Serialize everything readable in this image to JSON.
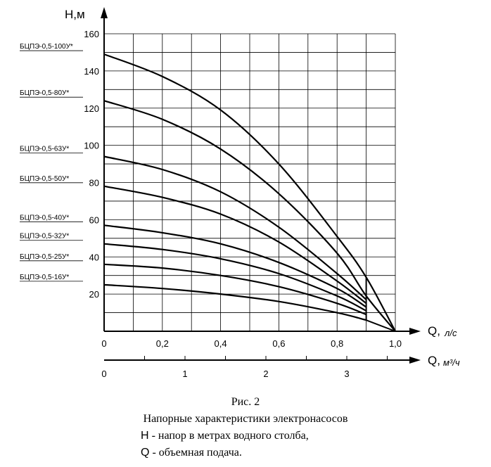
{
  "chart_data": {
    "type": "line",
    "y_axis": {
      "title": "H,м",
      "range": [
        0,
        160
      ],
      "ticks": [
        "20",
        "40",
        "60",
        "80",
        "100",
        "120",
        "140",
        "160"
      ]
    },
    "x_axis": {
      "title": "Q,",
      "unit": "л/с",
      "range": [
        0,
        1.0
      ],
      "ticks": [
        "0",
        "0,2",
        "0,4",
        "0,6",
        "0,8",
        "1,0"
      ]
    },
    "x2_axis": {
      "title": "Q,",
      "unit": "м³/ч",
      "range": [
        0,
        3.6
      ],
      "ticks": [
        "0",
        "1",
        "2",
        "3"
      ]
    },
    "grid": true,
    "series": [
      {
        "name": "БЦПЭ-0,5-100У*",
        "x": [
          0,
          0.2,
          0.4,
          0.6,
          0.8,
          0.9,
          1.0
        ],
        "y": [
          149,
          137,
          119,
          90,
          51,
          29,
          0
        ]
      },
      {
        "name": "БЦПЭ-0,5-80У*",
        "x": [
          0,
          0.2,
          0.4,
          0.6,
          0.8,
          0.9,
          1.0
        ],
        "y": [
          124,
          114,
          98,
          74,
          42,
          19,
          0
        ]
      },
      {
        "name": "БЦПЭ-0,5-63У*",
        "x": [
          0,
          0.2,
          0.4,
          0.6,
          0.8,
          0.9
        ],
        "y": [
          94,
          87,
          75,
          56,
          31,
          17
        ]
      },
      {
        "name": "БЦПЭ-0,5-50У*",
        "x": [
          0,
          0.2,
          0.4,
          0.6,
          0.8,
          0.9
        ],
        "y": [
          78,
          72,
          63,
          48,
          27,
          15
        ]
      },
      {
        "name": "БЦПЭ-0,5-40У*",
        "x": [
          0,
          0.2,
          0.4,
          0.6,
          0.8,
          0.9
        ],
        "y": [
          57,
          53,
          47,
          37,
          23,
          13
        ]
      },
      {
        "name": "БЦПЭ-0,5-32У*",
        "x": [
          0,
          0.2,
          0.4,
          0.6,
          0.8,
          0.9
        ],
        "y": [
          47,
          44,
          39,
          31,
          19,
          11
        ]
      },
      {
        "name": "БЦПЭ-0,5-25У*",
        "x": [
          0,
          0.2,
          0.4,
          0.6,
          0.8,
          0.9
        ],
        "y": [
          36,
          34,
          30,
          24,
          15,
          9
        ]
      },
      {
        "name": "БЦПЭ-0,5-16У*",
        "x": [
          0,
          0.2,
          0.4,
          0.6,
          0.8,
          0.9
        ],
        "y": [
          25,
          23,
          20,
          16,
          10,
          6
        ]
      }
    ]
  },
  "caption": {
    "figure": "Рис. 2",
    "title": "Напорные характеристики электронасосов",
    "legend_h_symbol": "H",
    "legend_h_text": " - напор в метрах водного столба,",
    "legend_q_symbol": "Q",
    "legend_q_text": " - объемная подача."
  }
}
